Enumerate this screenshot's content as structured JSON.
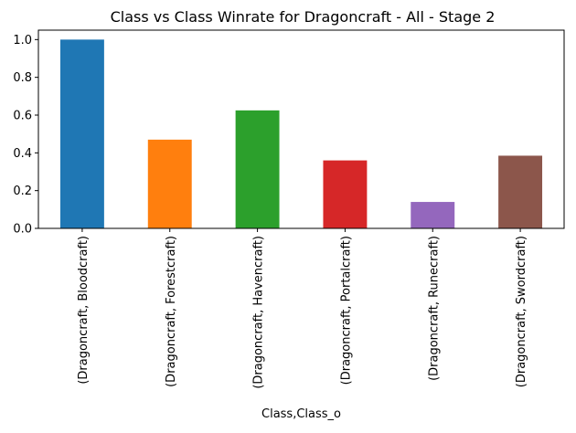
{
  "chart_data": {
    "type": "bar",
    "title": "Class vs Class Winrate for Dragoncraft - All - Stage 2",
    "xlabel": "Class,Class_o",
    "ylabel": "",
    "categories": [
      "(Dragoncraft, Bloodcraft)",
      "(Dragoncraft, Forestcraft)",
      "(Dragoncraft, Havencraft)",
      "(Dragoncraft, Portalcraft)",
      "(Dragoncraft, Runecraft)",
      "(Dragoncraft, Swordcraft)"
    ],
    "values": [
      1.0,
      0.47,
      0.625,
      0.36,
      0.14,
      0.385
    ],
    "colors": [
      "#1f77b4",
      "#ff7f0e",
      "#2ca02c",
      "#d62728",
      "#9467bd",
      "#8c564b"
    ],
    "ylim": [
      0,
      1.05
    ],
    "yticks": [
      "0.0",
      "0.2",
      "0.4",
      "0.6",
      "0.8",
      "1.0"
    ],
    "grid": false,
    "legend": "none"
  }
}
